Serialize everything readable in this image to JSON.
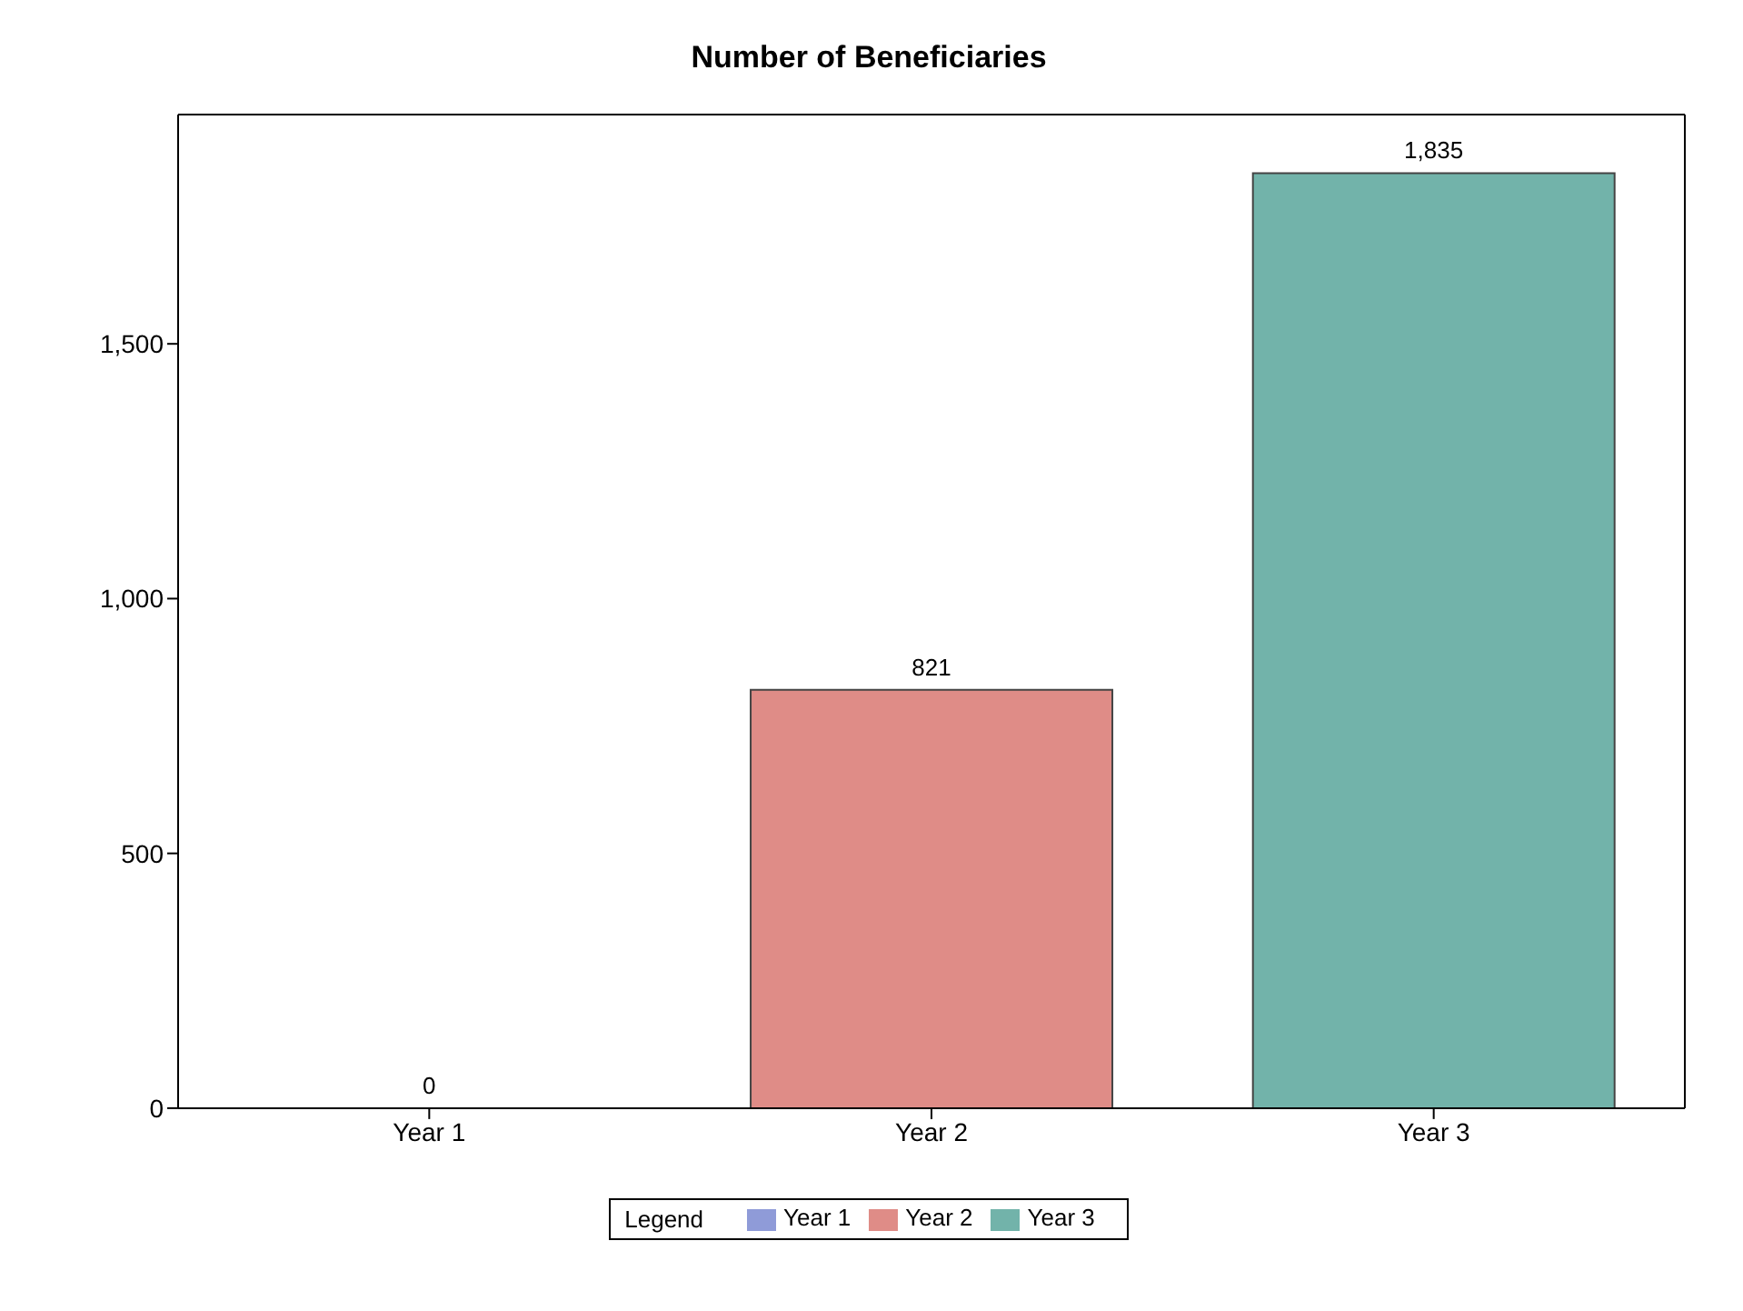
{
  "chart_data": {
    "type": "bar",
    "title": "Number of Beneficiaries",
    "categories": [
      "Year 1",
      "Year 2",
      "Year 3"
    ],
    "series": [
      {
        "name": "Year 1",
        "color": "#8f9bd8",
        "values": [
          0,
          null,
          null
        ],
        "value_labels": [
          "0",
          null,
          null
        ]
      },
      {
        "name": "Year 2",
        "color": "#df8c87",
        "values": [
          null,
          821,
          null
        ],
        "value_labels": [
          null,
          "821",
          null
        ]
      },
      {
        "name": "Year 3",
        "color": "#72b3aa",
        "values": [
          null,
          null,
          1835
        ],
        "value_labels": [
          null,
          null,
          "1,835"
        ]
      }
    ],
    "ylim": [
      0,
      1950
    ],
    "yticks": [
      {
        "value": 0,
        "label": "0"
      },
      {
        "value": 500,
        "label": "500"
      },
      {
        "value": 1000,
        "label": "1,000"
      },
      {
        "value": 1500,
        "label": "1,500"
      }
    ],
    "legend": "bottom",
    "legend_title": "Legend",
    "grid": false
  }
}
